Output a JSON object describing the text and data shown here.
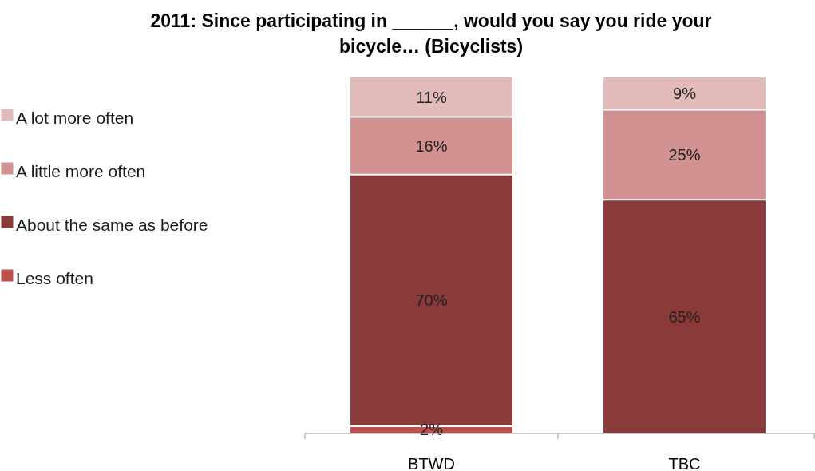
{
  "chart_data": {
    "type": "bar",
    "stacked": true,
    "title": "2011: Since participating in ______,  would you say you ride your bicycle… (Bicyclists)",
    "categories": [
      "BTWD",
      "TBC"
    ],
    "ylim": [
      0,
      99
    ],
    "legend": "left",
    "data_labels": false,
    "series": [
      {
        "name": "Less often",
        "color": "#c0504d",
        "values": [
          2,
          null
        ],
        "value_labels": [
          "2%",
          null
        ]
      },
      {
        "name": "About the same as before",
        "color": "#8b3a3a",
        "values": [
          70,
          65
        ],
        "value_labels": [
          "70%",
          "65%"
        ]
      },
      {
        "name": "A little more often",
        "color": "#d39292",
        "values": [
          16,
          25
        ],
        "value_labels": [
          "16%",
          "25%"
        ]
      },
      {
        "name": "A lot more often",
        "color": "#e2baba",
        "values": [
          11,
          9
        ],
        "value_labels": [
          "11%",
          "9%"
        ]
      }
    ]
  }
}
